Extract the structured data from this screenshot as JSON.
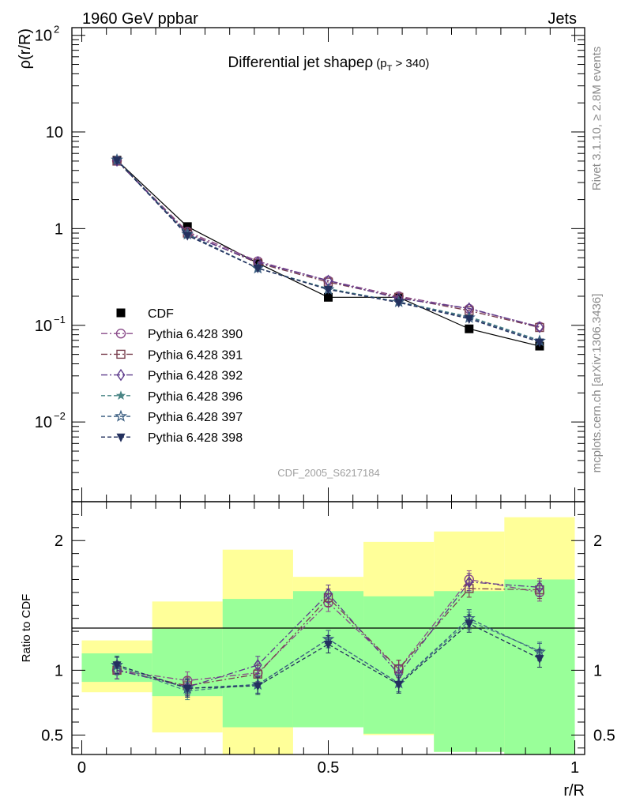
{
  "header": {
    "left": "1960 GeV ppbar",
    "right": "Jets",
    "side_top": "Rivet 3.1.10, ≥ 2.8M events",
    "side_bottom": "mcplots.cern.ch [arXiv:1306.3436]"
  },
  "chart_data": [
    {
      "type": "line",
      "title_main": "Differential jet shapeρ",
      "title_sub": "(p",
      "title_sub_index": "T",
      "title_sub_tail": " > 340)",
      "ylabel": "ρ(r/R)",
      "yscale": "log",
      "ylim": [
        0.0015,
        120
      ],
      "xlim": [
        -0.02,
        1.02
      ],
      "watermark": "CDF_2005_S6217184",
      "y_ticks": [
        {
          "value": 100,
          "label": "10",
          "exp": "2"
        },
        {
          "value": 10,
          "label": "10",
          "exp": ""
        },
        {
          "value": 1,
          "label": "1",
          "exp": ""
        },
        {
          "value": 0.1,
          "label": "10",
          "exp": "−1"
        },
        {
          "value": 0.01,
          "label": "10",
          "exp": "−2"
        }
      ],
      "x": [
        0.0714,
        0.2143,
        0.3571,
        0.5,
        0.6429,
        0.7857,
        0.9286
      ],
      "series": [
        {
          "name": "CDF",
          "color": "#000000",
          "marker": "square",
          "dash": "",
          "values": [
            5.1,
            1.05,
            0.44,
            0.195,
            0.195,
            0.092,
            0.061
          ]
        },
        {
          "name": "Pythia 6.428 390",
          "color": "#8a4b8a",
          "marker": "circle-open",
          "dash": "8,3,2,3",
          "values": [
            5.05,
            0.93,
            0.46,
            0.29,
            0.2,
            0.148,
            0.097
          ]
        },
        {
          "name": "Pythia 6.428 391",
          "color": "#7a4150",
          "marker": "square-open",
          "dash": "8,3,2,3",
          "values": [
            5.0,
            0.9,
            0.44,
            0.28,
            0.195,
            0.142,
            0.095
          ]
        },
        {
          "name": "Pythia 6.428 392",
          "color": "#5e3b8c",
          "marker": "diamond-open",
          "dash": "8,3,2,3",
          "values": [
            5.05,
            0.88,
            0.45,
            0.29,
            0.19,
            0.15,
            0.096
          ]
        },
        {
          "name": "Pythia 6.428 396",
          "color": "#4a8585",
          "marker": "star-filled",
          "dash": "5,3",
          "values": [
            5.1,
            0.86,
            0.39,
            0.24,
            0.175,
            0.123,
            0.07
          ]
        },
        {
          "name": "Pythia 6.428 397",
          "color": "#3c5f82",
          "marker": "star-open",
          "dash": "5,3",
          "values": [
            5.15,
            0.88,
            0.39,
            0.235,
            0.175,
            0.12,
            0.069
          ]
        },
        {
          "name": "Pythia 6.428 398",
          "color": "#23305e",
          "marker": "triangle-down",
          "dash": "5,3",
          "values": [
            5.1,
            0.85,
            0.39,
            0.235,
            0.172,
            0.117,
            0.067
          ]
        }
      ]
    },
    {
      "type": "line",
      "ylabel": "Ratio to CDF",
      "xlabel": "r/R",
      "ylim": [
        0.35,
        2.3
      ],
      "xlim": [
        -0.02,
        1.02
      ],
      "x_ticks": [
        {
          "value": 0,
          "label": "0"
        },
        {
          "value": 0.5,
          "label": "0.5"
        },
        {
          "value": 1,
          "label": "1"
        }
      ],
      "y_ticks": [
        {
          "value": 2,
          "label": "2"
        },
        {
          "value": 1,
          "label": "1"
        },
        {
          "value": 0.5,
          "label": "0.5"
        }
      ],
      "band_edges": [
        0,
        0.1429,
        0.2857,
        0.4286,
        0.5714,
        0.7143,
        0.8571,
        1.0
      ],
      "band_outer": [
        [
          0.83,
          1.23
        ],
        [
          0.52,
          1.53
        ],
        [
          0.35,
          1.93
        ],
        [
          0.72,
          1.72
        ],
        [
          0.5,
          1.99
        ],
        [
          0.37,
          2.07
        ],
        [
          0.35,
          2.18
        ]
      ],
      "band_inner": [
        [
          0.91,
          1.13
        ],
        [
          0.8,
          1.32
        ],
        [
          0.56,
          1.55
        ],
        [
          0.56,
          1.61
        ],
        [
          0.51,
          1.57
        ],
        [
          0.37,
          1.61
        ],
        [
          0.35,
          1.7
        ]
      ],
      "x": [
        0.0714,
        0.2143,
        0.3571,
        0.5,
        0.6429,
        0.7857,
        0.9286
      ],
      "series": [
        {
          "name": "Pythia 6.428 390",
          "values": [
            1.0,
            0.92,
            0.98,
            1.52,
            1.01,
            1.7,
            1.6
          ]
        },
        {
          "name": "Pythia 6.428 391",
          "values": [
            1.0,
            0.88,
            0.97,
            1.56,
            1.01,
            1.63,
            1.62
          ]
        },
        {
          "name": "Pythia 6.428 392",
          "values": [
            1.0,
            0.87,
            1.04,
            1.59,
            0.97,
            1.68,
            1.64
          ]
        },
        {
          "name": "Pythia 6.428 396",
          "values": [
            1.03,
            0.84,
            0.89,
            1.24,
            0.9,
            1.38,
            1.15
          ]
        },
        {
          "name": "Pythia 6.428 397",
          "values": [
            1.04,
            0.86,
            0.89,
            1.24,
            0.9,
            1.4,
            1.14
          ]
        },
        {
          "name": "Pythia 6.428 398",
          "values": [
            1.04,
            0.86,
            0.88,
            1.2,
            0.89,
            1.36,
            1.09
          ]
        }
      ]
    }
  ]
}
